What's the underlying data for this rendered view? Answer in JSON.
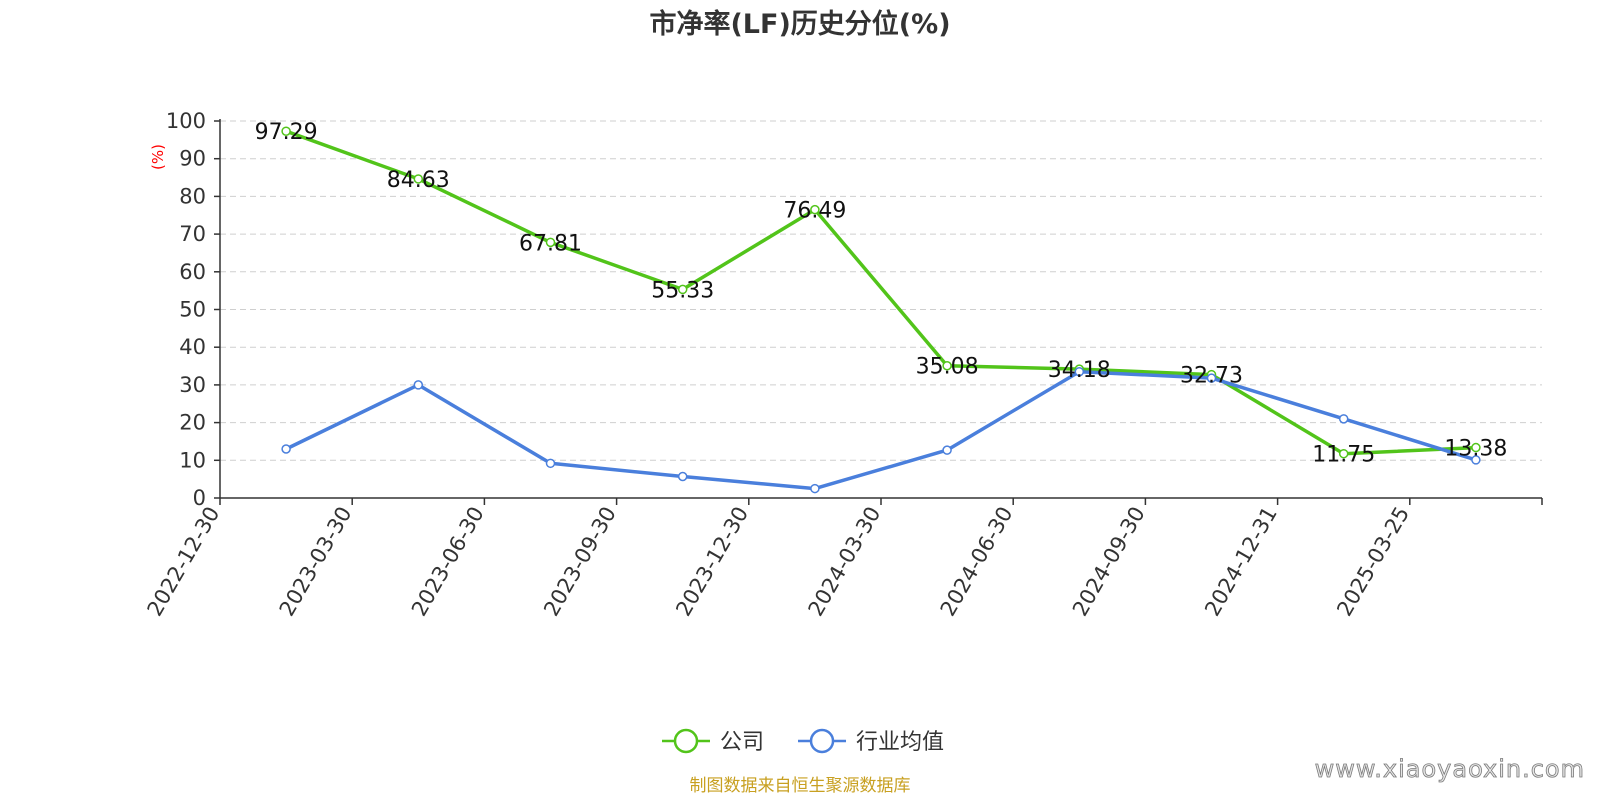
{
  "chart_data": {
    "type": "line",
    "title": "市净率(LF)历史分位(%)",
    "ylabel": "(%)",
    "xlabel": "",
    "categories": [
      "2022-12-30",
      "2023-03-30",
      "2023-06-30",
      "2023-09-30",
      "2023-12-30",
      "2024-03-30",
      "2024-06-30",
      "2024-09-30",
      "2024-12-31",
      "2025-03-25"
    ],
    "ylim": [
      0,
      100
    ],
    "yticks": [
      0,
      10,
      20,
      30,
      40,
      50,
      60,
      70,
      80,
      90,
      100
    ],
    "grid": true,
    "legend_position": "bottom",
    "series": [
      {
        "name": "公司",
        "color": "#52c41a",
        "values": [
          97.29,
          84.63,
          67.81,
          55.33,
          76.49,
          35.08,
          34.18,
          32.73,
          11.75,
          13.38
        ],
        "labels": [
          "97.29",
          "84.63",
          "67.81",
          "55.33",
          "76.49",
          "35.08",
          "34.18",
          "32.73",
          "11.75",
          "13.38"
        ]
      },
      {
        "name": "行业均值",
        "color": "#4a7fdc",
        "values": [
          13,
          30,
          9.2,
          5.7,
          2.5,
          12.7,
          33.5,
          31.8,
          21,
          10.1
        ]
      }
    ]
  },
  "footer": {
    "source": "制图数据来自恒生聚源数据库",
    "watermark": "www.xiaoyaoxin.com"
  }
}
